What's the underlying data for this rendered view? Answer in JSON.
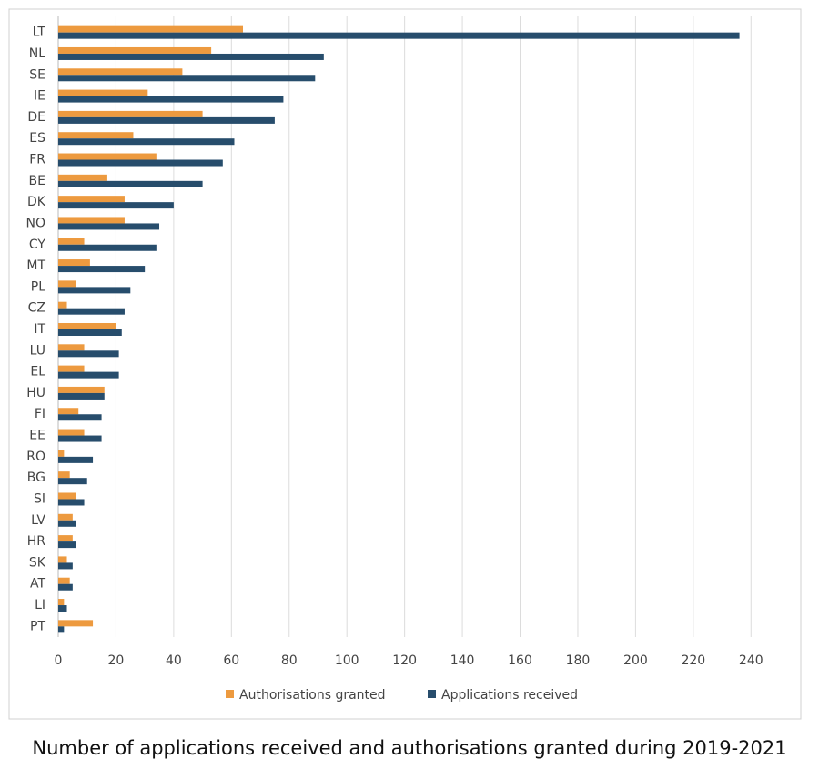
{
  "chart_data": {
    "type": "hbar",
    "title": "Number of applications received and authorisations granted during 2019-2021",
    "categories": [
      "LT",
      "NL",
      "SE",
      "IE",
      "DE",
      "ES",
      "FR",
      "BE",
      "DK",
      "NO",
      "CY",
      "MT",
      "PL",
      "CZ",
      "IT",
      "LU",
      "EL",
      "HU",
      "FI",
      "EE",
      "RO",
      "BG",
      "SI",
      "LV",
      "HR",
      "SK",
      "AT",
      "LI",
      "PT"
    ],
    "series": [
      {
        "name": "Authorisations granted",
        "color": "#ed9a3f",
        "values": [
          64,
          53,
          43,
          31,
          50,
          26,
          34,
          17,
          23,
          23,
          9,
          11,
          6,
          3,
          20,
          9,
          9,
          16,
          7,
          9,
          2,
          4,
          6,
          5,
          5,
          3,
          4,
          2,
          12
        ]
      },
      {
        "name": "Applications received",
        "color": "#274d6c",
        "values": [
          236,
          92,
          89,
          78,
          75,
          61,
          57,
          50,
          40,
          35,
          34,
          30,
          25,
          23,
          22,
          21,
          21,
          16,
          15,
          15,
          12,
          10,
          9,
          6,
          6,
          5,
          5,
          3,
          2
        ]
      }
    ],
    "xlim": [
      0,
      250
    ],
    "xticks": [
      0,
      20,
      40,
      60,
      80,
      100,
      120,
      140,
      160,
      180,
      200,
      220,
      240
    ],
    "grid": true,
    "legend": "bottom"
  }
}
